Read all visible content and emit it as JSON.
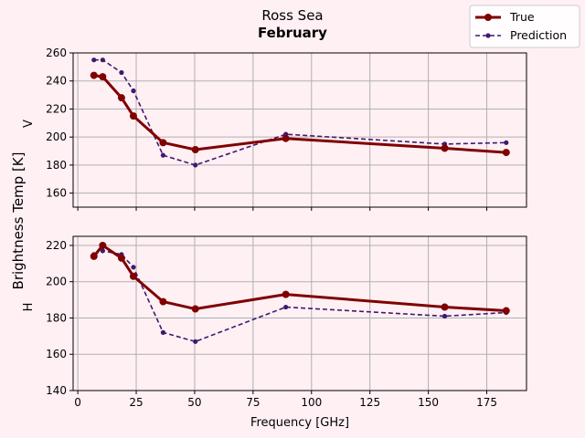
{
  "chart_data": {
    "type": "line",
    "title": "Ross Sea",
    "subtitle": "February",
    "xlabel": "Frequency [GHz]",
    "ylabel": "Brightness Temp [K]",
    "xlim": [
      -2,
      192
    ],
    "xticks": [
      0,
      25,
      50,
      75,
      100,
      125,
      150,
      175
    ],
    "grid": true,
    "legend": "top-right",
    "x": [
      6.9,
      10.65,
      18.7,
      23.8,
      36.5,
      50.3,
      89.0,
      157.0,
      183.31
    ],
    "legend_entries": [
      {
        "name": "True",
        "color": "#800000",
        "style": "solid"
      },
      {
        "name": "Prediction",
        "color": "#3d1a6e",
        "style": "dashed"
      }
    ],
    "panels": [
      {
        "label": "V",
        "ylim": [
          150,
          260
        ],
        "yticks": [
          160,
          180,
          200,
          220,
          240,
          260
        ],
        "series": [
          {
            "name": "True",
            "values": [
              244,
              243,
              228,
              215,
              196,
              191,
              199,
              192,
              189
            ]
          },
          {
            "name": "Prediction",
            "values": [
              255,
              255,
              246,
              233,
              187,
              180,
              202,
              195,
              196
            ]
          }
        ]
      },
      {
        "label": "H",
        "ylim": [
          140,
          225
        ],
        "yticks": [
          140,
          160,
          180,
          200,
          220
        ],
        "series": [
          {
            "name": "True",
            "values": [
              214,
              220,
              213,
              203,
              189,
              185,
              193,
              186,
              184
            ]
          },
          {
            "name": "Prediction",
            "values": [
              215,
              217,
              215,
              208,
              172,
              167,
              186,
              181,
              183
            ]
          }
        ]
      }
    ]
  }
}
